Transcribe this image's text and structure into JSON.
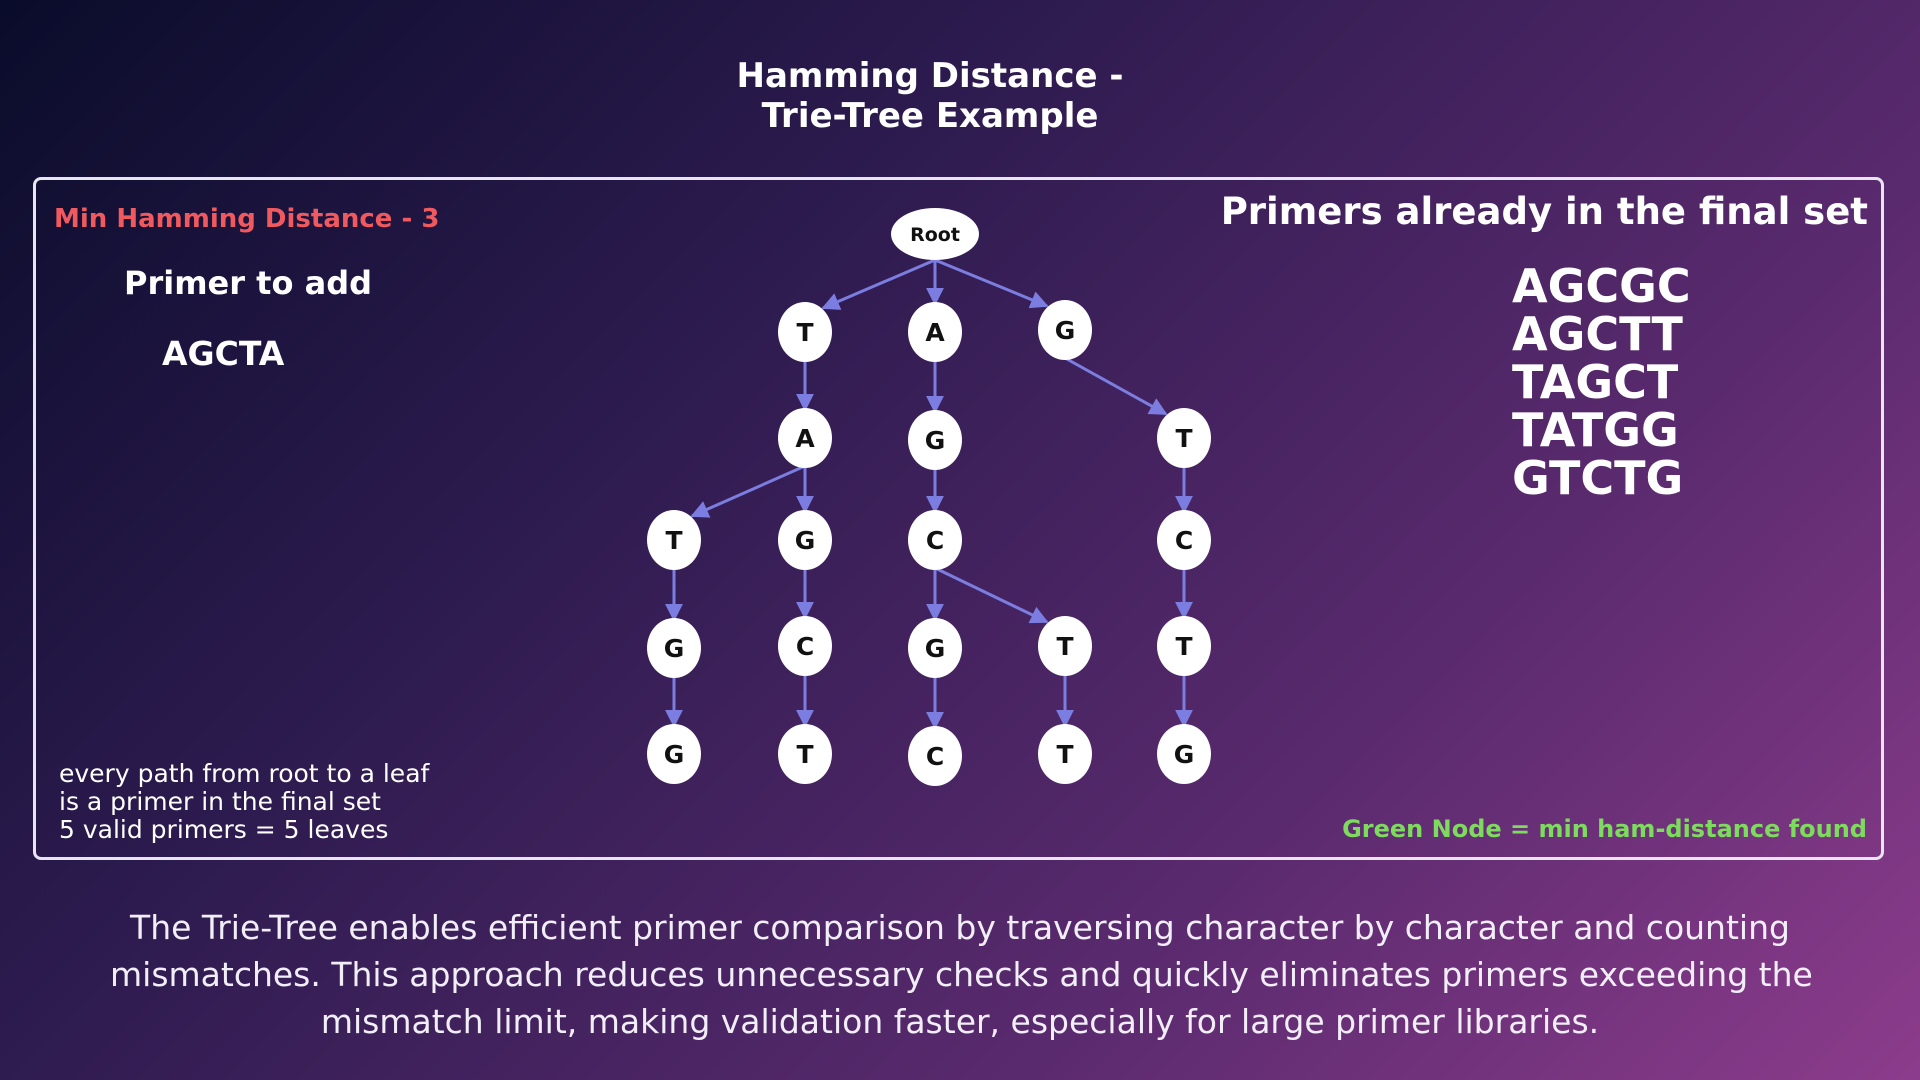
{
  "title": {
    "line1": "Hamming Distance -",
    "line2": "Trie-Tree Example"
  },
  "left": {
    "min_hamming": "Min Hamming Distance - 3",
    "primer_to_add_label": "Primer to add",
    "primer_to_add_value": "AGCTA",
    "notes": [
      "every path from root to a leaf",
      "is a primer in the final set",
      "5 valid primers = 5 leaves"
    ]
  },
  "right": {
    "header": "Primers already in the final set",
    "primers": [
      "AGCGC",
      "AGCTT",
      "TAGCT",
      "TATGG",
      "GTCTG"
    ],
    "legend": "Green Node = min ham-distance found"
  },
  "trie": {
    "root_label": "Root",
    "node_fill": "#ffffff",
    "edge_color": "#7b7ee0",
    "nodes": {
      "root": "Root",
      "t1": "T",
      "a1": "A",
      "g1": "G",
      "t1a": "A",
      "a1g": "G",
      "g1t": "T",
      "t1a_t": "T",
      "t1a_g": "G",
      "a1g_c": "C",
      "g1t_c": "C",
      "t1a_t_g": "G",
      "t1a_g_c": "C",
      "a1g_c_g": "G",
      "a1g_c_t": "T",
      "g1t_c_t": "T",
      "t1a_t_g_g": "G",
      "t1a_g_c_t": "T",
      "a1g_c_g_c": "C",
      "a1g_c_t_t": "T",
      "g1t_c_t_g": "G"
    }
  },
  "caption": [
    "The Trie-Tree enables efficient primer comparison by traversing character by character and counting",
    "mismatches. This approach reduces unnecessary checks and quickly eliminates primers exceeding the",
    "mismatch limit, making validation faster, especially for large primer libraries."
  ],
  "colors": {
    "min_hamming": "#f05a5f",
    "legend": "#7ddc5e",
    "edge": "#7b7ee0"
  }
}
